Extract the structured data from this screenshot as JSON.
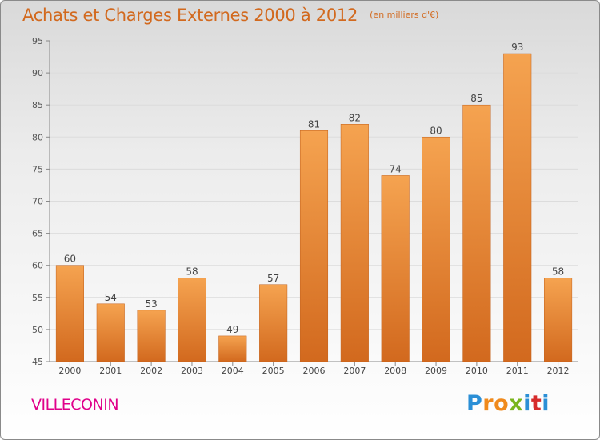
{
  "title": "Achats et Charges Externes 2000 à 2012",
  "subtitle": "(en milliers d'€)",
  "commune": "VILLECONIN",
  "logo": {
    "text": "Proxiti",
    "colors": [
      "#2b8fd6",
      "#f08a1c",
      "#7ab51d",
      "#d62b2b"
    ]
  },
  "colors": {
    "bar_top": "#f5a350",
    "bar_bottom": "#d2691e",
    "title": "#d2691e",
    "commune": "#e0008a"
  },
  "chart_data": {
    "type": "bar",
    "title": "Achats et Charges Externes 2000 à 2012",
    "categories": [
      "2000",
      "2001",
      "2002",
      "2003",
      "2004",
      "2005",
      "2006",
      "2007",
      "2008",
      "2009",
      "2010",
      "2011",
      "2012"
    ],
    "values": [
      60,
      54,
      53,
      58,
      49,
      57,
      81,
      82,
      74,
      80,
      85,
      93,
      58
    ],
    "ylim": [
      45,
      95
    ],
    "yticks": [
      45,
      50,
      55,
      60,
      65,
      70,
      75,
      80,
      85,
      90,
      95
    ],
    "grid": true
  }
}
